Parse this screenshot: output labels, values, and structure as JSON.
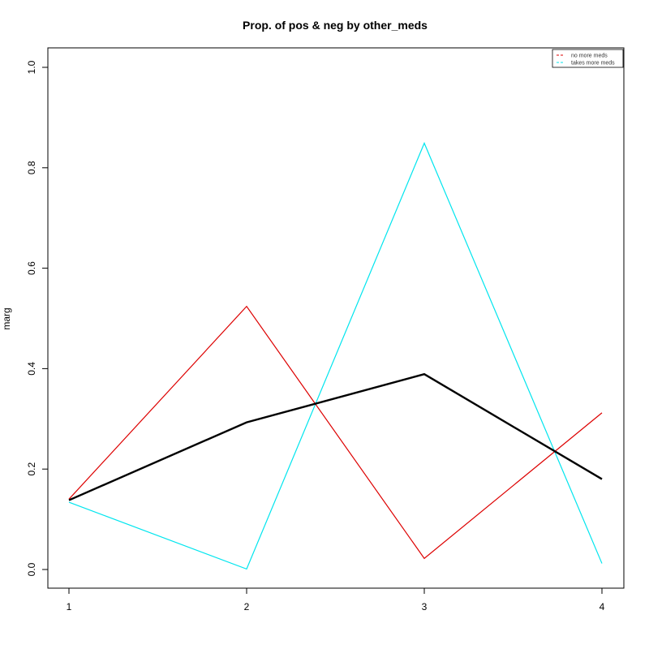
{
  "chart_data": {
    "type": "line",
    "title": "Prop. of pos & neg by other_meds",
    "xlabel": "",
    "ylabel": "marg",
    "x": [
      1,
      2,
      3,
      4
    ],
    "x_ticks": [
      "1",
      "2",
      "3",
      "4"
    ],
    "y_ticks": [
      "0.0",
      "0.2",
      "0.4",
      "0.6",
      "0.8",
      "1.0"
    ],
    "xlim": [
      1,
      4
    ],
    "ylim": [
      0,
      1
    ],
    "grid": false,
    "legend_position": "top-right",
    "marginal": {
      "values": [
        0.138,
        0.293,
        0.389,
        0.18
      ],
      "color": "#000000"
    },
    "series": [
      {
        "name": "no more meds",
        "values": [
          0.14,
          0.524,
          0.022,
          0.312
        ],
        "color": "#DD0000"
      },
      {
        "name": "takes more meds",
        "values": [
          0.134,
          0.001,
          0.849,
          0.012
        ],
        "color": "#00E5EE"
      }
    ]
  }
}
